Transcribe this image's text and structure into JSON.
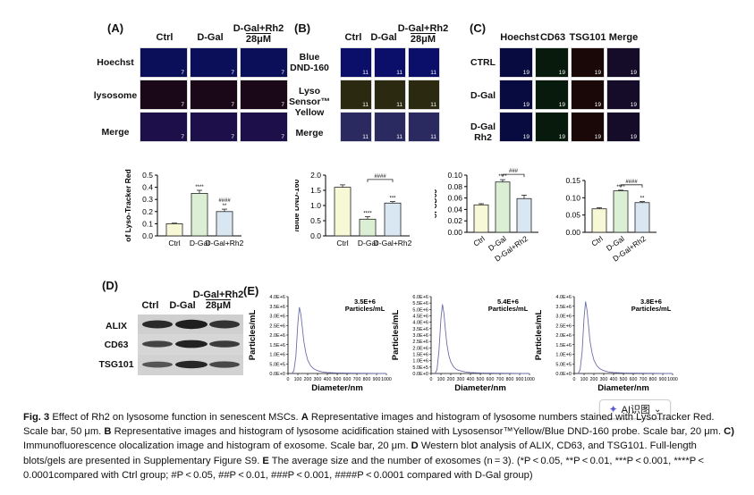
{
  "panels": {
    "A": {
      "letter": "(A)",
      "cols": [
        "Ctrl",
        "D-Gal",
        "D-Gal+Rh2",
        "28μM"
      ],
      "rows": [
        "Hoechst",
        "lysosome",
        "Merge"
      ],
      "scale": "50μm"
    },
    "B": {
      "letter": "(B)",
      "cols": [
        "Ctrl",
        "D-Gal",
        "D-Gal+Rh2",
        "28μM"
      ],
      "rows": [
        "Blue",
        "DND-160",
        "Lyso",
        "Sensor™",
        "Yellow",
        "Merge"
      ],
      "scale": "20μm"
    },
    "C": {
      "letter": "(C)",
      "cols": [
        "Hoechst",
        "CD63",
        "TSG101",
        "Merge"
      ],
      "rows": [
        "CTRL",
        "D-Gal",
        "D-Gal",
        "Rh2"
      ]
    },
    "D": {
      "letter": "(D)",
      "cols": [
        "Ctrl",
        "D-Gal",
        "D-Gal+Rh2",
        "28μM"
      ],
      "rows": [
        "ALIX",
        "CD63",
        "TSG101"
      ]
    },
    "E": {
      "letter": "(E)"
    }
  },
  "chart_data": [
    {
      "type": "bar",
      "id": "lysotracker",
      "ylabel_lines": [
        "Mean optical density",
        "of Lyso-Tracker Red"
      ],
      "categories": [
        "Ctrl",
        "D-Gal",
        "D-Gal+Rh2"
      ],
      "values": [
        0.1,
        0.35,
        0.2
      ],
      "errors": [
        0.005,
        0.025,
        0.02
      ],
      "ylim": [
        0,
        0.5
      ],
      "yticks": [
        "0.0",
        "0.1",
        "0.2",
        "0.3",
        "0.4",
        "0.5"
      ],
      "yticks_values": [
        0,
        0.1,
        0.2,
        0.3,
        0.4,
        0.5
      ],
      "sig": [
        "",
        "****",
        "####\n**"
      ],
      "colors": [
        "#f6f8d6",
        "#dbefd4",
        "#d9e7f3"
      ]
    },
    {
      "type": "bar",
      "id": "lysosensor",
      "ylabel_lines": [
        "LysoSensor™ Yellow",
        "/Blue DND-160"
      ],
      "categories": [
        "Ctrl",
        "D-Gal",
        "D-Gal+Rh2"
      ],
      "values": [
        1.6,
        0.55,
        1.08
      ],
      "errors": [
        0.08,
        0.08,
        0.05
      ],
      "ylim": [
        0,
        2.0
      ],
      "yticks": [
        "0.0",
        "0.5",
        "1.0",
        "1.5",
        "2.0"
      ],
      "yticks_values": [
        0,
        0.5,
        1.0,
        1.5,
        2.0
      ],
      "sig": [
        "",
        "****",
        "***"
      ],
      "bracket": "####",
      "colors": [
        "#f6f8d6",
        "#dbefd4",
        "#d9e7f3"
      ]
    },
    {
      "type": "bar",
      "id": "cd63",
      "ylabel_lines": [
        "Mean optical density",
        "of CD63"
      ],
      "categories": [
        "Ctrl",
        "D-Gal",
        "D-Gal+Rh2"
      ],
      "values": [
        0.048,
        0.088,
        0.059
      ],
      "errors": [
        0.002,
        0.004,
        0.006
      ],
      "ylim": [
        0,
        0.1
      ],
      "yticks": [
        "0.00",
        "0.02",
        "0.04",
        "0.06",
        "0.08",
        "0.10"
      ],
      "yticks_values": [
        0,
        0.02,
        0.04,
        0.06,
        0.08,
        0.1
      ],
      "sig": [
        "",
        "****",
        ""
      ],
      "bracket": "###",
      "colors": [
        "#f6f8d6",
        "#dbefd4",
        "#d9e7f3"
      ]
    },
    {
      "type": "bar",
      "id": "tsg101",
      "ylabel_lines": [
        "Mean optical density",
        "of TSG101"
      ],
      "categories": [
        "Ctrl",
        "D-Gal",
        "D-Gal+Rh2"
      ],
      "values": [
        0.068,
        0.12,
        0.086
      ],
      "errors": [
        0.003,
        0.002,
        0.003
      ],
      "ylim": [
        0,
        0.15
      ],
      "yticks": [
        "0.00",
        "0.05",
        "0.10",
        "0.15"
      ],
      "yticks_values": [
        0,
        0.05,
        0.1,
        0.15
      ],
      "sig": [
        "",
        "****",
        "**"
      ],
      "bracket": "####",
      "colors": [
        "#f6f8d6",
        "#dbefd4",
        "#d9e7f3"
      ]
    },
    {
      "type": "line",
      "id": "nta1",
      "ann": [
        "3.5E+6",
        "Particles/mL"
      ],
      "xlabel": "Diameter/nm",
      "ylabel": "Particles/mL",
      "xticks": [
        "0",
        "100",
        "200",
        "300",
        "400",
        "500",
        "600",
        "700",
        "800",
        "900",
        "1000"
      ],
      "xticks_values": [
        0,
        100,
        200,
        300,
        400,
        500,
        600,
        700,
        800,
        900,
        1000
      ],
      "yticks": [
        "0.0E+0",
        "5.0E+5",
        "1.0E+6",
        "1.5E+6",
        "2.0E+6",
        "2.5E+6",
        "3.0E+6",
        "3.5E+6",
        "4.0E+6"
      ],
      "yticks_values": [
        0,
        500000,
        1000000,
        1500000,
        2000000,
        2500000,
        3000000,
        3500000,
        4000000
      ],
      "xlim": [
        0,
        1000
      ],
      "ylim": [
        0,
        4000000
      ],
      "x": [
        40,
        60,
        80,
        100,
        115,
        130,
        145,
        160,
        180,
        200,
        230,
        260,
        300,
        350,
        400,
        500,
        600,
        700,
        800,
        900,
        1000
      ],
      "y": [
        0,
        150000,
        900000,
        2600000,
        3450000,
        3100000,
        2400000,
        1700000,
        1100000,
        700000,
        400000,
        250000,
        150000,
        80000,
        50000,
        30000,
        20000,
        15000,
        10000,
        5000,
        0
      ]
    },
    {
      "type": "line",
      "id": "nta2",
      "ann": [
        "5.4E+6",
        "Particles/mL"
      ],
      "xlabel": "Diameter/nm",
      "ylabel": "Particles/mL",
      "xticks": [
        "0",
        "100",
        "200",
        "300",
        "400",
        "500",
        "600",
        "700",
        "800",
        "900",
        "1000"
      ],
      "xticks_values": [
        0,
        100,
        200,
        300,
        400,
        500,
        600,
        700,
        800,
        900,
        1000
      ],
      "yticks": [
        "0.0E+0",
        "5.0E+5",
        "1.0E+6",
        "1.5E+6",
        "2.0E+6",
        "2.5E+6",
        "3.0E+6",
        "3.5E+6",
        "4.0E+6",
        "4.5E+6",
        "5.0E+6",
        "5.5E+6",
        "6.0E+6"
      ],
      "yticks_values": [
        0,
        500000,
        1000000,
        1500000,
        2000000,
        2500000,
        3000000,
        3500000,
        4000000,
        4500000,
        5000000,
        5500000,
        6000000
      ],
      "xlim": [
        0,
        1000
      ],
      "ylim": [
        0,
        6000000
      ],
      "x": [
        40,
        60,
        80,
        100,
        115,
        130,
        145,
        160,
        180,
        200,
        230,
        260,
        300,
        350,
        400,
        500,
        600,
        700,
        800,
        900,
        1000
      ],
      "y": [
        0,
        300000,
        1800000,
        4300000,
        5400000,
        4700000,
        3400000,
        2300000,
        1400000,
        900000,
        500000,
        300000,
        200000,
        120000,
        80000,
        40000,
        30000,
        20000,
        15000,
        8000,
        0
      ]
    },
    {
      "type": "line",
      "id": "nta3",
      "ann": [
        "3.8E+6",
        "Particles/mL"
      ],
      "xlabel": "Diameter/nm",
      "ylabel": "Particles/mL",
      "xticks": [
        "0",
        "100",
        "200",
        "300",
        "400",
        "500",
        "600",
        "700",
        "800",
        "900",
        "1000"
      ],
      "xticks_values": [
        0,
        100,
        200,
        300,
        400,
        500,
        600,
        700,
        800,
        900,
        1000
      ],
      "yticks": [
        "0.0E+0",
        "5.0E+5",
        "1.0E+6",
        "1.5E+6",
        "2.0E+6",
        "2.5E+6",
        "3.0E+6",
        "3.5E+6",
        "4.0E+6"
      ],
      "yticks_values": [
        0,
        500000,
        1000000,
        1500000,
        2000000,
        2500000,
        3000000,
        3500000,
        4000000
      ],
      "xlim": [
        0,
        1000
      ],
      "ylim": [
        0,
        4000000
      ],
      "x": [
        40,
        60,
        80,
        100,
        115,
        130,
        145,
        160,
        180,
        200,
        230,
        260,
        300,
        350,
        400,
        500,
        600,
        700,
        800,
        900,
        1000
      ],
      "y": [
        0,
        200000,
        1100000,
        2900000,
        3750000,
        3300000,
        2500000,
        1700000,
        1100000,
        700000,
        400000,
        250000,
        150000,
        80000,
        50000,
        30000,
        20000,
        15000,
        10000,
        5000,
        0
      ]
    }
  ],
  "ai_button": {
    "label": "AI识图",
    "icon": "sparkle-icon",
    "chevron": "⌄"
  },
  "caption": {
    "fig": "Fig. 3",
    "title": " Effect of Rh2 on lysosome function in senescent MSCs. ",
    "a_lbl": "A",
    "a_txt": " Representative images and histogram of lysosome numbers stained with LysoTracker Red. Scale bar, 50 μm. ",
    "b_lbl": "B",
    "b_txt": " Representative images and histogram of lysosome acidification stained with Lysosensor™Yellow/Blue DND-160 probe. Scale bar, 20 μm. ",
    "c_lbl": "C)",
    "c_txt": " Immunofluorescence olocalization image and histogram of exosome. Scale bar, 20 μm. ",
    "d_lbl": "D",
    "d_txt": " Western blot analysis of ALIX, CD63, and TSG101. Full-length blots/gels are presented in Supplementary Figure S9. ",
    "e_lbl": "E",
    "e_txt": " The average size and the number of exosomes (n = 3). (*P < 0.05, **P < 0.01, ***P < 0.001, ****P < 0.0001compared with Ctrl group; #P < 0.05, ##P < 0.01, ###P < 0.001, ####P < 0.0001 compared with D-Gal group)"
  }
}
